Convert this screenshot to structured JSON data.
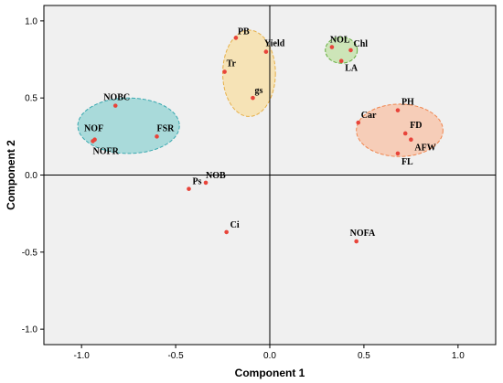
{
  "chart_data": {
    "type": "scatter",
    "title": "",
    "xlabel": "Component 1",
    "ylabel": "Component 2",
    "xlim": [
      -1.2,
      1.2
    ],
    "ylim": [
      -1.1,
      1.1
    ],
    "xticks": [
      -1.0,
      -0.5,
      0.0,
      0.5,
      1.0
    ],
    "yticks": [
      -1.0,
      -0.5,
      0.0,
      0.5,
      1.0
    ],
    "xtick_labels": [
      "-1.0",
      "-0.5",
      "0.0",
      "0.5",
      "1.0"
    ],
    "ytick_labels": [
      "-1.0",
      "-0.5",
      "0.0",
      "0.5",
      "1.0"
    ],
    "grid": false,
    "reference_lines": {
      "x": 0,
      "y": 0
    },
    "colors": {
      "plot_bg": "#f0f0f0",
      "point": "#e8443a",
      "frame": "#000000"
    },
    "points": [
      {
        "label": "PB",
        "x": -0.18,
        "y": 0.89
      },
      {
        "label": "Yield",
        "x": -0.02,
        "y": 0.8
      },
      {
        "label": "Tr",
        "x": -0.24,
        "y": 0.67
      },
      {
        "label": "gs",
        "x": -0.09,
        "y": 0.5
      },
      {
        "label": "NOL",
        "x": 0.33,
        "y": 0.83
      },
      {
        "label": "Chl",
        "x": 0.43,
        "y": 0.81
      },
      {
        "label": "LA",
        "x": 0.38,
        "y": 0.74
      },
      {
        "label": "NOBC",
        "x": -0.82,
        "y": 0.45
      },
      {
        "label": "FSR",
        "x": -0.6,
        "y": 0.25
      },
      {
        "label": "NOF",
        "x": -0.93,
        "y": 0.23
      },
      {
        "label": "NOFR",
        "x": -0.94,
        "y": 0.22
      },
      {
        "label": "Car",
        "x": 0.47,
        "y": 0.34
      },
      {
        "label": "PH",
        "x": 0.68,
        "y": 0.42
      },
      {
        "label": "FD",
        "x": 0.72,
        "y": 0.27
      },
      {
        "label": "AFW",
        "x": 0.75,
        "y": 0.23
      },
      {
        "label": "FL",
        "x": 0.68,
        "y": 0.14
      },
      {
        "label": "NOB",
        "x": -0.34,
        "y": -0.05
      },
      {
        "label": "Ps",
        "x": -0.43,
        "y": -0.09
      },
      {
        "label": "Ci",
        "x": -0.23,
        "y": -0.37
      },
      {
        "label": "NOFA",
        "x": 0.46,
        "y": -0.43
      }
    ],
    "clusters": [
      {
        "members": [
          "NOBC",
          "FSR",
          "NOF",
          "NOFR"
        ],
        "center": [
          -0.75,
          0.32
        ],
        "rx": 0.27,
        "ry": 0.18,
        "fill": "#a9dada",
        "stroke": "#3aa9b0"
      },
      {
        "members": [
          "PB",
          "Yield",
          "Tr",
          "gs"
        ],
        "center": [
          -0.11,
          0.66
        ],
        "rx": 0.14,
        "ry": 0.28,
        "fill": "#f6e3b6",
        "stroke": "#e6b04a"
      },
      {
        "members": [
          "NOL",
          "Chl",
          "LA"
        ],
        "center": [
          0.38,
          0.81
        ],
        "rx": 0.085,
        "ry": 0.085,
        "fill": "#cde5b8",
        "stroke": "#62ad3c"
      },
      {
        "members": [
          "Car",
          "PH",
          "FD",
          "AFW",
          "FL"
        ],
        "center": [
          0.69,
          0.29
        ],
        "rx": 0.23,
        "ry": 0.17,
        "fill": "#f6cdb8",
        "stroke": "#f0854e"
      }
    ]
  }
}
